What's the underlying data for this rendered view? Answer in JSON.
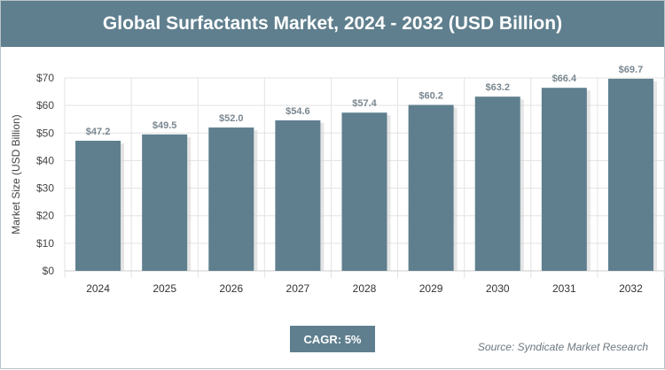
{
  "chart_data": {
    "type": "bar",
    "title": "Global Surfactants Market, 2024 - 2032 (USD Billion)",
    "ylabel": "Market Size (USD Billion)",
    "xlabel": "",
    "categories": [
      "2024",
      "2025",
      "2026",
      "2027",
      "2028",
      "2029",
      "2030",
      "2031",
      "2032"
    ],
    "values": [
      47.2,
      49.5,
      52.0,
      54.6,
      57.4,
      60.2,
      63.2,
      66.4,
      69.7
    ],
    "value_labels": [
      "$47.2",
      "$49.5",
      "$52.0",
      "$54.6",
      "$57.4",
      "$60.2",
      "$63.2",
      "$66.4",
      "$69.7"
    ],
    "ylim": [
      0,
      70
    ],
    "yticks": [
      0,
      10,
      20,
      30,
      40,
      50,
      60,
      70
    ],
    "ytick_labels": [
      "$0",
      "$10",
      "$20",
      "$30",
      "$40",
      "$50",
      "$60",
      "$70"
    ],
    "grid": true,
    "bar_color": "#5f7f8e"
  },
  "footer": {
    "cagr": "CAGR: 5%",
    "source": "Source: Syndicate Market Research"
  }
}
